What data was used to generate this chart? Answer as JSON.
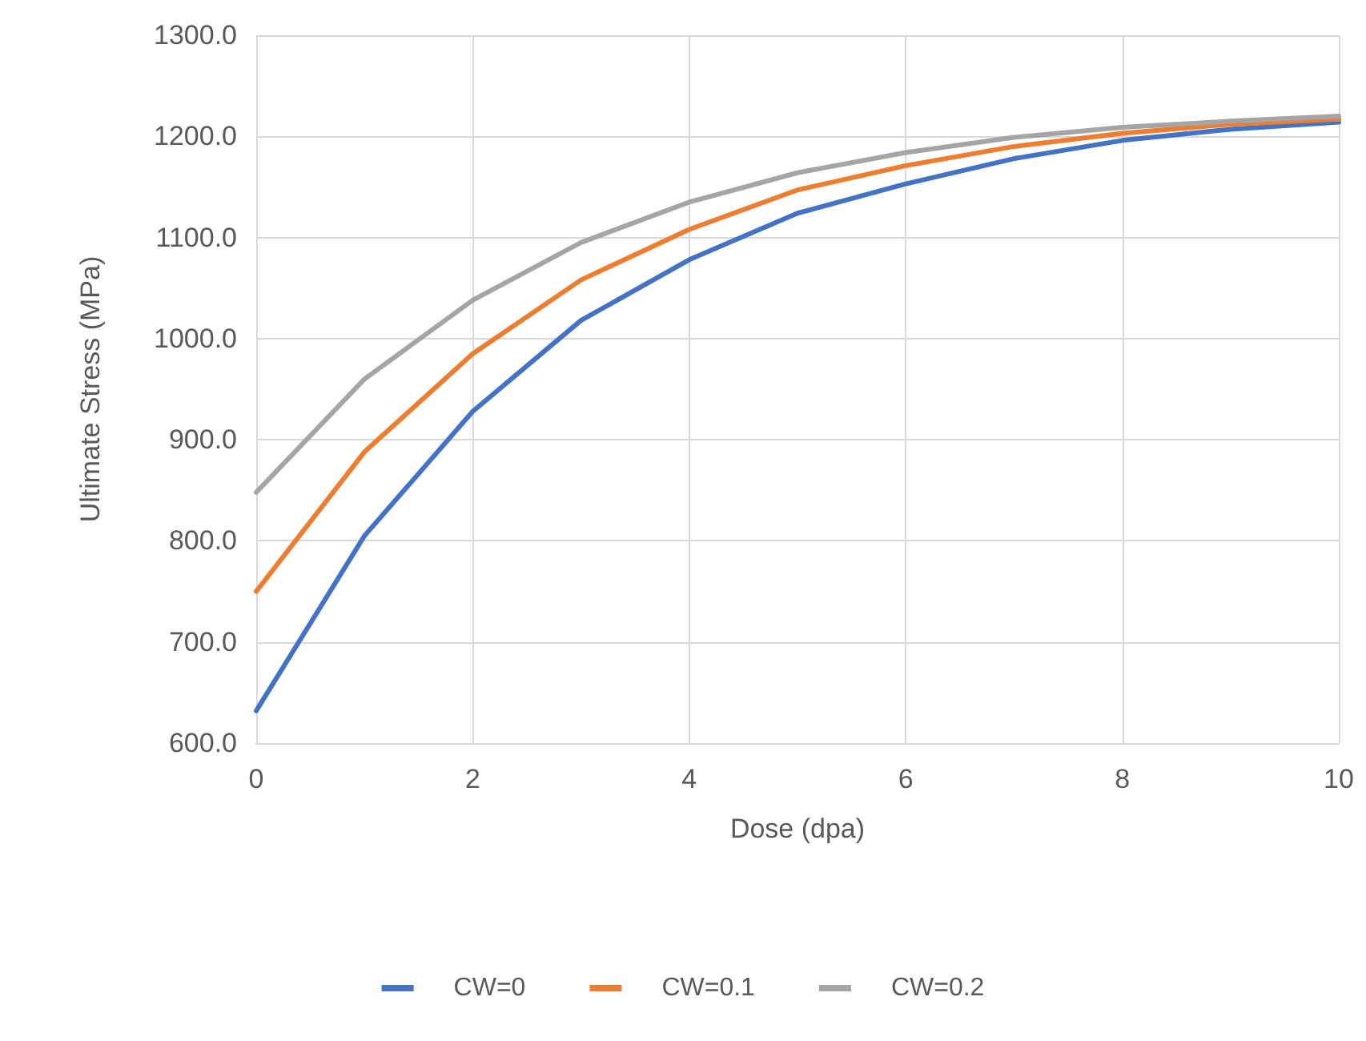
{
  "chart_data": {
    "type": "line",
    "xlabel": "Dose (dpa)",
    "ylabel": "Ultimate Stress (MPa)",
    "x": [
      0,
      1,
      2,
      3,
      4,
      5,
      6,
      7,
      8,
      9,
      10
    ],
    "series": [
      {
        "name": "CW=0",
        "color": "#4472c4",
        "values": [
          632,
          805,
          928,
          1018,
          1078,
          1124,
          1153,
          1178,
          1196,
          1207,
          1214
        ]
      },
      {
        "name": "CW=0.1",
        "color": "#ed7d31",
        "values": [
          750,
          888,
          985,
          1058,
          1108,
          1147,
          1171,
          1190,
          1203,
          1212,
          1217
        ]
      },
      {
        "name": "CW=0.2",
        "color": "#a5a5a5",
        "values": [
          848,
          960,
          1038,
          1095,
          1135,
          1164,
          1184,
          1199,
          1209,
          1215,
          1220
        ]
      }
    ],
    "xlim": [
      0,
      10
    ],
    "xticks": [
      0,
      2,
      4,
      6,
      8,
      10
    ],
    "ylim": [
      600,
      1300
    ],
    "yticks": [
      {
        "value": 600,
        "label": "600.0"
      },
      {
        "value": 700,
        "label": "700.0"
      },
      {
        "value": 800,
        "label": "800.0"
      },
      {
        "value": 900,
        "label": "900.0"
      },
      {
        "value": 1000,
        "label": "1000.0"
      },
      {
        "value": 1100,
        "label": "1100.0"
      },
      {
        "value": 1200,
        "label": "1200.0"
      },
      {
        "value": 1300,
        "label": "1300.0"
      }
    ],
    "grid": true,
    "legend": "bottom",
    "marker": "none",
    "line_style": "solid"
  }
}
